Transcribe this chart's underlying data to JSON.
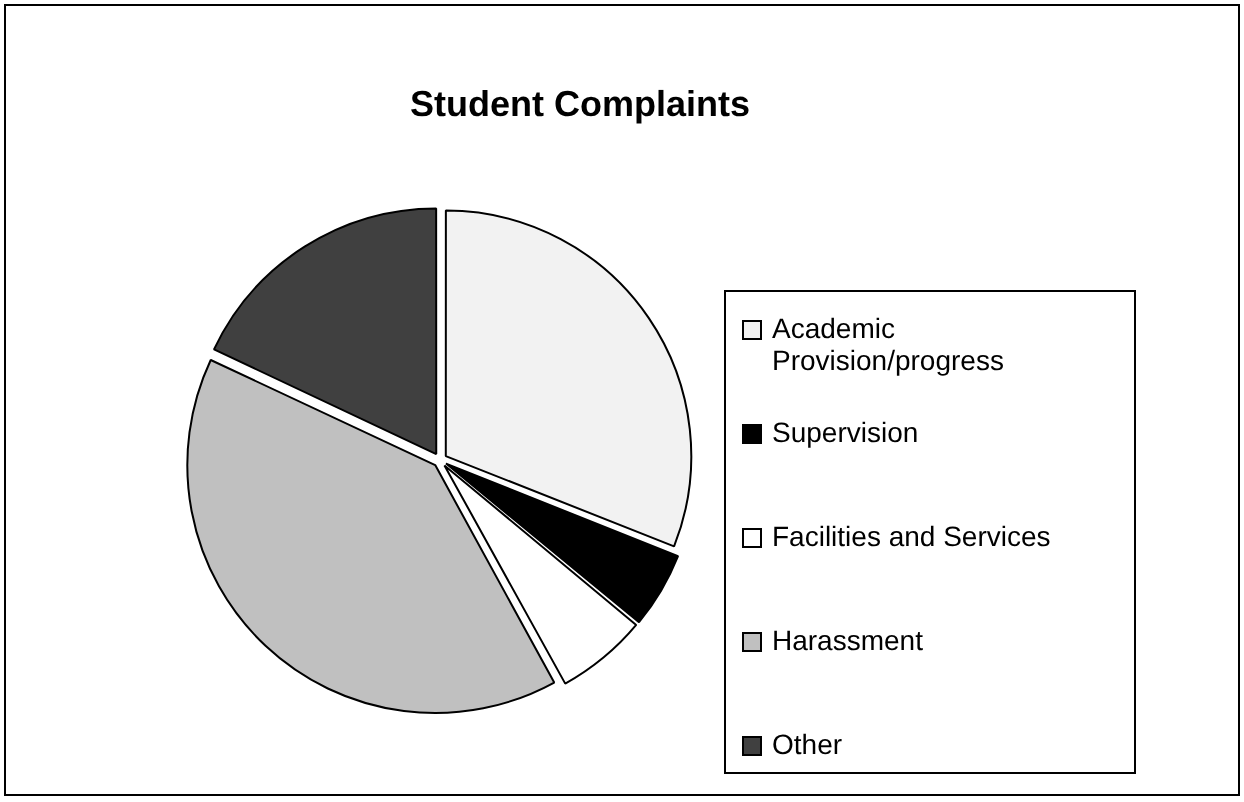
{
  "chart_data": {
    "type": "pie",
    "title": "Student Complaints",
    "categories": [
      "Academic Provision/progress",
      "Supervision",
      "Facilities and Services",
      "Harassment",
      "Other"
    ],
    "values": [
      31,
      5,
      6,
      40,
      18
    ],
    "colors": [
      "#f2f2f2",
      "#000000",
      "#ffffff",
      "#c0c0c0",
      "#404040"
    ],
    "legend": "right"
  }
}
